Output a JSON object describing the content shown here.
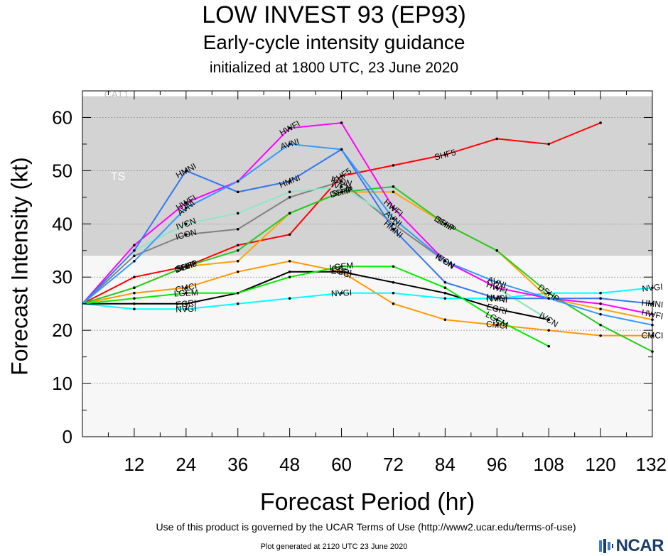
{
  "page": {
    "title": "LOW INVEST 93 (EP93)",
    "subtitle": "Early-cycle intensity guidance",
    "initialized": "initialized at 1800 UTC, 23 June 2020",
    "terms": "Use of this product is governed by the UCAR Terms of Use (http://www2.ucar.edu/terms-of-use)",
    "plot_generated": "Plot generated at 2120 UTC   23 June 2020",
    "logo_text": "NCAR"
  },
  "chart_data": {
    "type": "line",
    "xlabel": "Forecast Period (hr)",
    "ylabel": "Forecast Intensity (kt)",
    "xlim": [
      0,
      132
    ],
    "ylim": [
      0,
      65
    ],
    "xticks": [
      12,
      24,
      36,
      48,
      60,
      72,
      84,
      96,
      108,
      120,
      132
    ],
    "yticks": [
      0,
      10,
      20,
      30,
      40,
      50,
      60
    ],
    "grid": "horizontal",
    "bands": [
      {
        "label": "TS",
        "y0": 34,
        "y1": 64,
        "color": "#d3d3d3"
      },
      {
        "label": "",
        "y0": 0,
        "y1": 34,
        "color": "#f7f7f7"
      }
    ],
    "band_top_label": "CAT1",
    "series": [
      {
        "name": "CMCI",
        "color": "#ff9900",
        "x": [
          0,
          12,
          24,
          36,
          48,
          60,
          72,
          84,
          96,
          108,
          120,
          132
        ],
        "y": [
          25,
          27,
          28,
          31,
          33,
          31,
          25,
          22,
          21,
          20,
          19,
          19
        ],
        "labels": [
          [
            24,
            "CMCI"
          ],
          [
            60,
            "CMCI"
          ],
          [
            96,
            "CMCI"
          ],
          [
            132,
            "CMCI"
          ]
        ]
      },
      {
        "name": "NVGI",
        "color": "#00ffff",
        "x": [
          0,
          12,
          24,
          36,
          48,
          60,
          72,
          84,
          96,
          108,
          120,
          132
        ],
        "y": [
          25,
          24,
          24,
          25,
          26,
          27,
          27,
          26,
          26,
          27,
          27,
          28
        ],
        "labels": [
          [
            24,
            "NVGI"
          ],
          [
            60,
            "NVGI"
          ],
          [
            96,
            "NVGI"
          ],
          [
            132,
            "NVGI"
          ]
        ]
      },
      {
        "name": "EGRI",
        "color": "#000000",
        "x": [
          0,
          12,
          24,
          36,
          48,
          60,
          72,
          84,
          96,
          108
        ],
        "y": [
          25,
          25,
          25,
          27,
          31,
          31,
          29,
          27,
          24,
          22
        ],
        "labels": [
          [
            24,
            "EGRI"
          ],
          [
            60,
            "EGRI"
          ],
          [
            96,
            "EGRI"
          ]
        ]
      },
      {
        "name": "LGEM",
        "color": "#00ee00",
        "x": [
          0,
          12,
          24,
          36,
          48,
          60,
          72,
          84,
          96,
          108
        ],
        "y": [
          25,
          26,
          27,
          27,
          30,
          32,
          32,
          28,
          22,
          17
        ],
        "labels": [
          [
            24,
            "LGEM"
          ],
          [
            60,
            "LGEM"
          ],
          [
            96,
            "LGEM"
          ]
        ]
      },
      {
        "name": "SHF5",
        "color": "#ff0000",
        "x": [
          0,
          12,
          24,
          36,
          48,
          60,
          72,
          84,
          96,
          108,
          120
        ],
        "y": [
          25,
          30,
          32,
          36,
          38,
          49,
          51,
          53,
          56,
          55,
          59
        ],
        "labels": [
          [
            24,
            "SHF5"
          ],
          [
            60,
            "SHF5"
          ],
          [
            84,
            "SHF5"
          ]
        ]
      },
      {
        "name": "SHIP",
        "color": "#ffa500",
        "x": [
          0,
          12,
          24,
          36,
          48,
          60,
          72,
          84,
          96,
          108,
          120,
          132
        ],
        "y": [
          25,
          28,
          32,
          33,
          42,
          46,
          46,
          40,
          35,
          26,
          24,
          22
        ],
        "labels": [
          [
            24,
            "SHIP"
          ],
          [
            60,
            "SHIP"
          ],
          [
            84,
            "SHIP"
          ]
        ]
      },
      {
        "name": "DSHP",
        "color": "#22cc22",
        "x": [
          0,
          12,
          24,
          36,
          48,
          60,
          72,
          84,
          96,
          108,
          120,
          132
        ],
        "y": [
          25,
          28,
          32,
          35,
          42,
          46,
          47,
          40,
          35,
          27,
          21,
          16
        ],
        "labels": [
          [
            24,
            "DSHP"
          ],
          [
            60,
            "DSHP"
          ],
          [
            84,
            "DSHP"
          ],
          [
            108,
            "DSHP"
          ]
        ]
      },
      {
        "name": "ICON",
        "color": "#808080",
        "x": [
          0,
          12,
          24,
          36,
          48,
          60,
          72,
          84,
          96,
          108
        ],
        "y": [
          25,
          34,
          38,
          39,
          45,
          48,
          40,
          33,
          28,
          22
        ],
        "labels": [
          [
            24,
            "ICON"
          ],
          [
            60,
            "ICON"
          ],
          [
            84,
            "ICON"
          ]
        ]
      },
      {
        "name": "IVCN",
        "color": "#8fe6c6",
        "x": [
          0,
          12,
          24,
          36,
          48,
          60,
          72,
          84,
          96,
          108
        ],
        "y": [
          25,
          35,
          40,
          42,
          46,
          47,
          41,
          33,
          28,
          22
        ],
        "labels": [
          [
            24,
            "IVCN"
          ],
          [
            60,
            "IVCN"
          ],
          [
            84,
            "IVCN"
          ],
          [
            108,
            "IVCN"
          ]
        ]
      },
      {
        "name": "HWFI",
        "color": "#ff00ff",
        "x": [
          0,
          12,
          24,
          36,
          48,
          60,
          72,
          84,
          96,
          108,
          120,
          132
        ],
        "y": [
          25,
          36,
          44,
          48,
          58,
          59,
          43,
          33,
          28,
          26,
          25,
          23
        ],
        "labels": [
          [
            24,
            "HWFI"
          ],
          [
            48,
            "HWFI"
          ],
          [
            72,
            "HWFI"
          ],
          [
            96,
            "HWFI"
          ],
          [
            132,
            "HWFI"
          ]
        ]
      },
      {
        "name": "HMNI",
        "color": "#3377ee",
        "x": [
          0,
          12,
          24,
          36,
          48,
          60,
          72,
          84,
          96,
          108,
          120,
          132
        ],
        "y": [
          25,
          35,
          50,
          46,
          48,
          54,
          39,
          29,
          26,
          26,
          26,
          25
        ],
        "labels": [
          [
            24,
            "HMNI"
          ],
          [
            48,
            "HMNI"
          ],
          [
            72,
            "HMNI"
          ],
          [
            96,
            "HMNI"
          ],
          [
            132,
            "HMNI"
          ]
        ]
      },
      {
        "name": "AVNI",
        "color": "#3399ff",
        "x": [
          0,
          12,
          24,
          36,
          48,
          60,
          72,
          84,
          96,
          108,
          120,
          132
        ],
        "y": [
          25,
          33,
          43,
          48,
          55,
          54,
          41,
          33,
          29,
          26,
          23,
          21
        ],
        "labels": [
          [
            24,
            "AVNI"
          ],
          [
            48,
            "AVNI"
          ],
          [
            72,
            "AVNI"
          ],
          [
            96,
            "AVNI"
          ]
        ]
      }
    ]
  }
}
